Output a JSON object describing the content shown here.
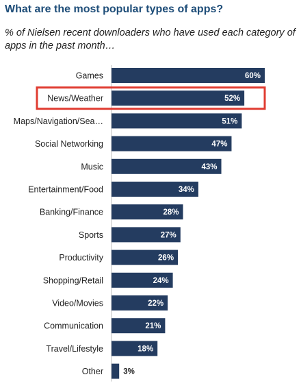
{
  "title": "What are the most popular types of apps?",
  "subtitle": "% of Nielsen recent downloaders who have used each category of apps in the past month…",
  "chart_data": {
    "type": "bar",
    "orientation": "horizontal",
    "categories": [
      "Games",
      "News/Weather",
      "Maps/Navigation/Sea…",
      "Social Networking",
      "Music",
      "Entertainment/Food",
      "Banking/Finance",
      "Sports",
      "Productivity",
      "Shopping/Retail",
      "Video/Movies",
      "Communication",
      "Travel/Lifestyle",
      "Other"
    ],
    "values": [
      60,
      52,
      51,
      47,
      43,
      34,
      28,
      27,
      26,
      24,
      22,
      21,
      18,
      3
    ],
    "value_labels": [
      "60%",
      "52%",
      "51%",
      "47%",
      "43%",
      "34%",
      "28%",
      "27%",
      "26%",
      "24%",
      "22%",
      "21%",
      "18%",
      "3%"
    ],
    "unit": "%",
    "highlighted_category": "News/Weather",
    "bar_color": "#243c60",
    "highlight_color": "#e03c31",
    "value_label_color_inside": "#ffffff",
    "value_label_color_outside": "#222222",
    "xlim": [
      0,
      60
    ],
    "grid": false,
    "legend": false
  }
}
